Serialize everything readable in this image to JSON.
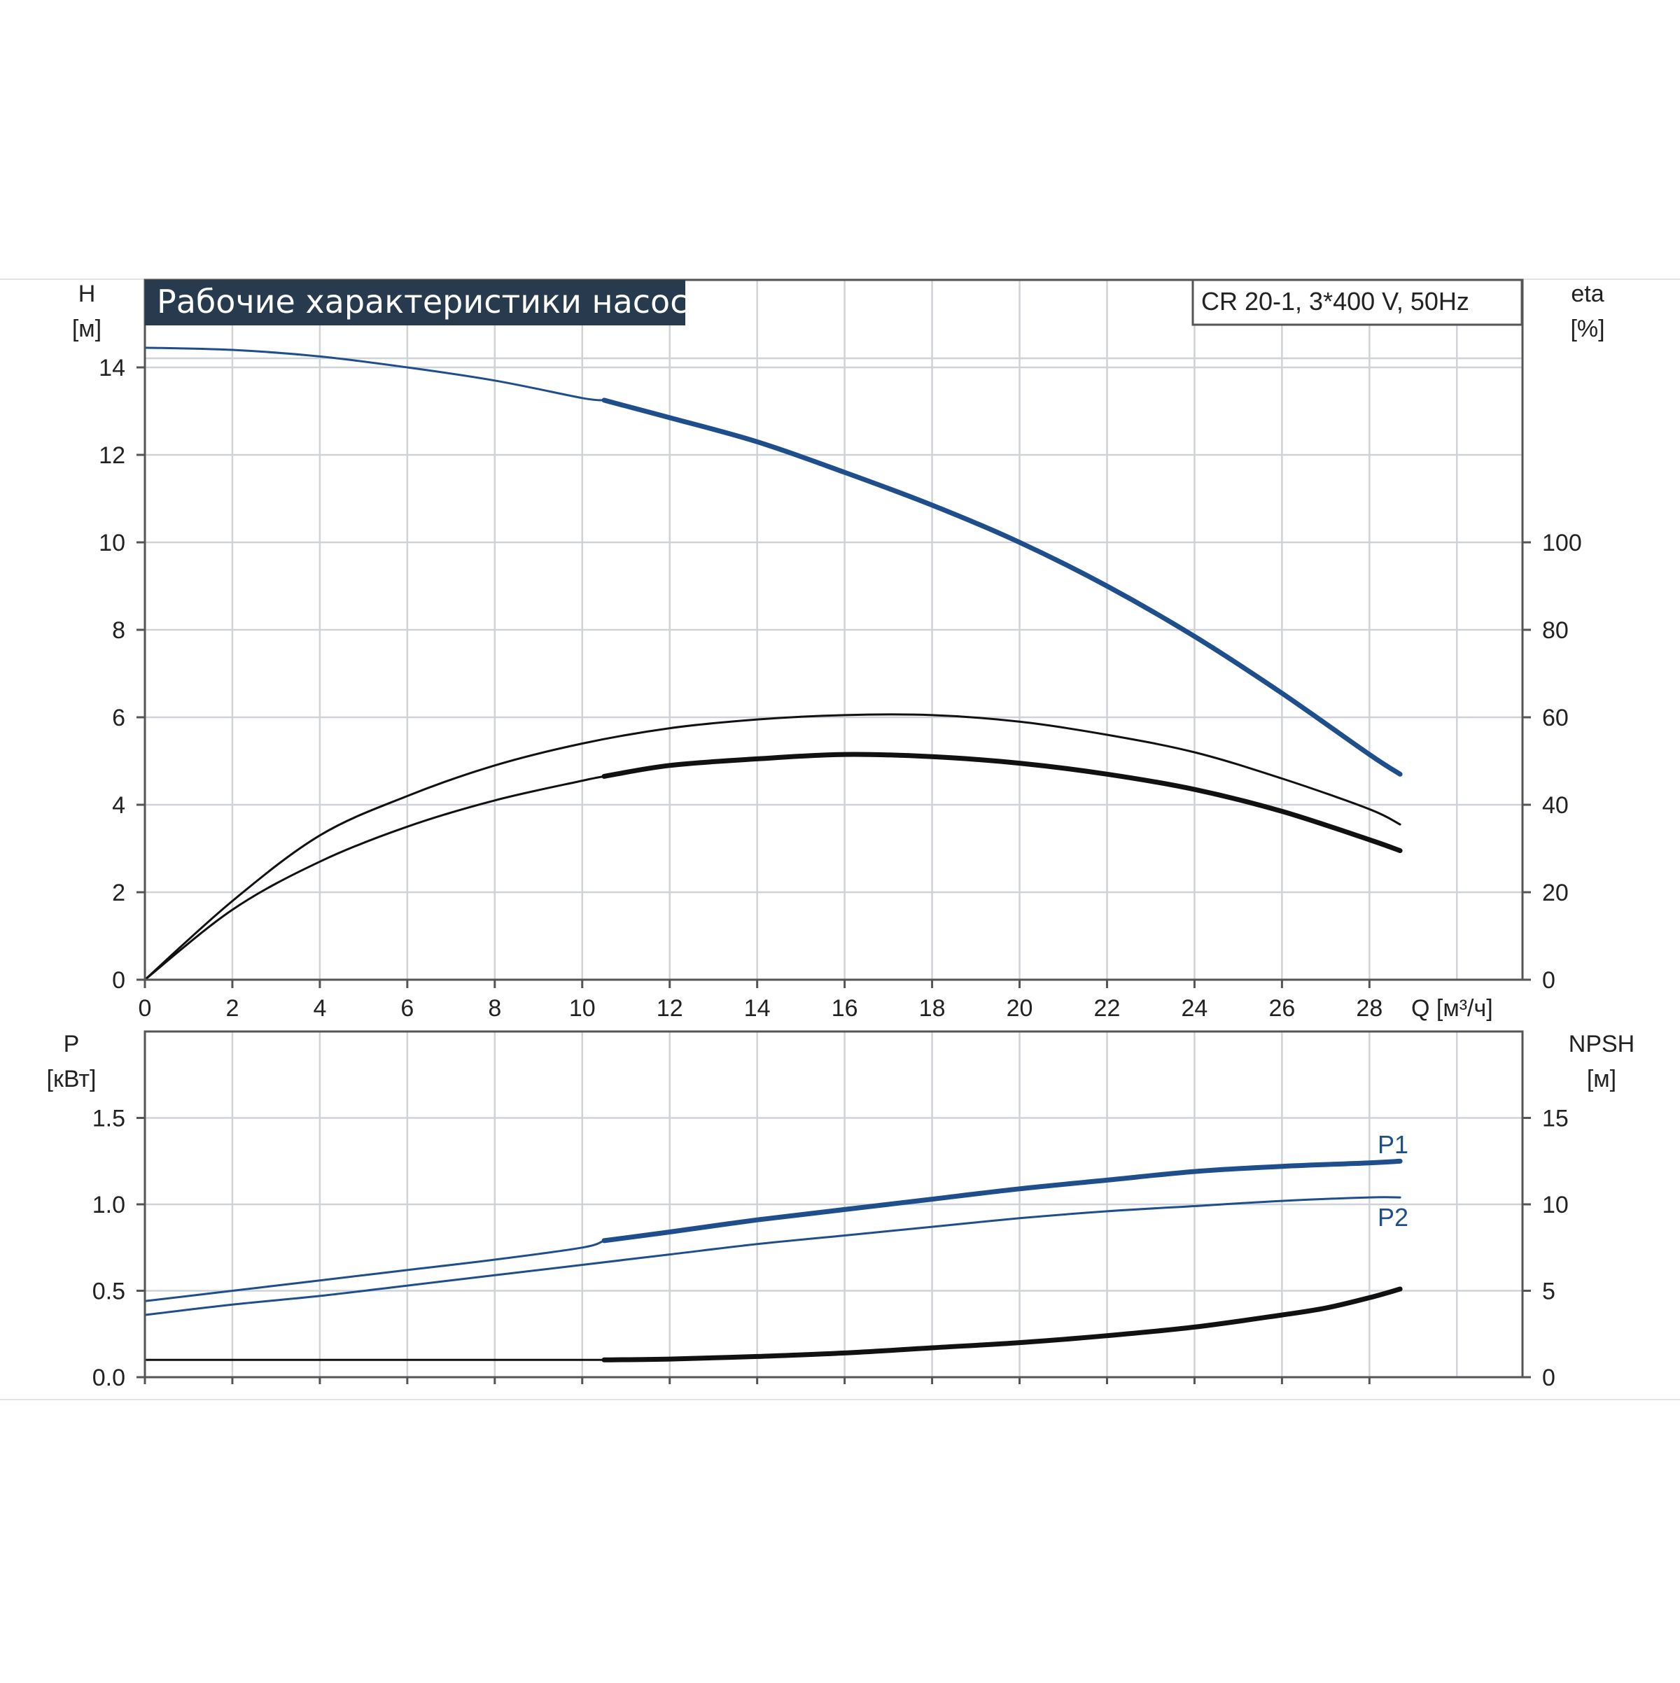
{
  "chart_data": [
    {
      "id": "top",
      "type": "line",
      "title": "Рабочие характеристики насоса",
      "model": "CR 20-1, 3*400 V, 50Hz",
      "ylabel_left": "H",
      "ylabel_left_unit": "[м]",
      "ylabel_right": "eta",
      "ylabel_right_unit": "[%]",
      "xlabel": "Q [м³/ч]",
      "xlim": [
        0,
        31.5
      ],
      "ylim_left": [
        0,
        16
      ],
      "ylim_right": [
        0,
        160
      ],
      "xticks": [
        0,
        2,
        4,
        6,
        8,
        10,
        12,
        14,
        16,
        18,
        20,
        22,
        24,
        26,
        28
      ],
      "yticks_left": [
        0,
        2,
        4,
        6,
        8,
        10,
        12,
        14
      ],
      "yticks_right": [
        0,
        20,
        40,
        60,
        80,
        100
      ],
      "grid": true,
      "series": [
        {
          "id": "H",
          "axis": "left",
          "color": "#1f4e8c",
          "bold_from_x": 10.5,
          "x": [
            0,
            2,
            4,
            6,
            8,
            10,
            10.5,
            12,
            14,
            16,
            18,
            20,
            22,
            24,
            26,
            28,
            28.7
          ],
          "values": [
            14.45,
            14.4,
            14.25,
            14.0,
            13.7,
            13.3,
            13.25,
            12.85,
            12.3,
            11.6,
            10.85,
            10.0,
            9.0,
            7.85,
            6.55,
            5.15,
            4.7
          ]
        },
        {
          "id": "eta_upper",
          "axis": "right",
          "color": "#111111",
          "bold_from_x": null,
          "x": [
            0,
            2,
            4,
            6,
            8,
            10,
            12,
            14,
            16,
            18,
            20,
            22,
            24,
            26,
            28,
            28.7
          ],
          "values": [
            0,
            18,
            33,
            42,
            49,
            54,
            57.5,
            59.5,
            60.5,
            60.5,
            59,
            56,
            52,
            46,
            39,
            35.5
          ]
        },
        {
          "id": "eta_lower",
          "axis": "right",
          "color": "#111111",
          "bold_from_x": 10.5,
          "x": [
            0,
            2,
            4,
            6,
            8,
            10,
            10.5,
            12,
            14,
            16,
            18,
            20,
            22,
            24,
            26,
            28,
            28.7
          ],
          "values": [
            0,
            16,
            27,
            35,
            41,
            45.5,
            46.5,
            49,
            50.5,
            51.5,
            51,
            49.5,
            47,
            43.5,
            38.5,
            32,
            29.5
          ]
        }
      ]
    },
    {
      "id": "bottom",
      "type": "line",
      "ylabel_left": "P",
      "ylabel_left_unit": "[кВт]",
      "ylabel_right": "NPSH",
      "ylabel_right_unit": "[м]",
      "xlim": [
        0,
        31.5
      ],
      "ylim_left": [
        0,
        2
      ],
      "ylim_right": [
        0,
        20
      ],
      "yticks_left": [
        "0.0",
        "0.5",
        "1.0",
        "1.5"
      ],
      "yticks_right": [
        0,
        5,
        10,
        15
      ],
      "grid": true,
      "series": [
        {
          "name": "P1",
          "axis": "left",
          "color": "#1f4e8c",
          "bold_from_x": 10.5,
          "x": [
            0,
            2,
            4,
            6,
            8,
            10,
            10.5,
            12,
            14,
            16,
            18,
            20,
            22,
            24,
            26,
            28,
            28.7
          ],
          "values": [
            0.44,
            0.5,
            0.56,
            0.62,
            0.68,
            0.75,
            0.79,
            0.84,
            0.91,
            0.97,
            1.03,
            1.09,
            1.14,
            1.19,
            1.22,
            1.24,
            1.25
          ]
        },
        {
          "name": "P2",
          "axis": "left",
          "color": "#1f4e8c",
          "bold_from_x": null,
          "x": [
            0,
            2,
            4,
            6,
            8,
            10,
            12,
            14,
            16,
            18,
            20,
            22,
            24,
            26,
            28,
            28.7
          ],
          "values": [
            0.36,
            0.42,
            0.47,
            0.53,
            0.59,
            0.65,
            0.71,
            0.77,
            0.82,
            0.87,
            0.92,
            0.96,
            0.99,
            1.02,
            1.04,
            1.04
          ]
        },
        {
          "id": "NPSH",
          "axis": "right",
          "color": "#111111",
          "bold_from_x": 10.5,
          "x": [
            0,
            2,
            4,
            6,
            8,
            10,
            10.5,
            12,
            14,
            16,
            18,
            20,
            22,
            24,
            26,
            27,
            28,
            28.7
          ],
          "values": [
            1.0,
            1.0,
            1.0,
            1.0,
            1.0,
            1.0,
            1.0,
            1.05,
            1.2,
            1.4,
            1.7,
            2.0,
            2.4,
            2.9,
            3.6,
            4.0,
            4.6,
            5.1
          ]
        }
      ]
    }
  ]
}
